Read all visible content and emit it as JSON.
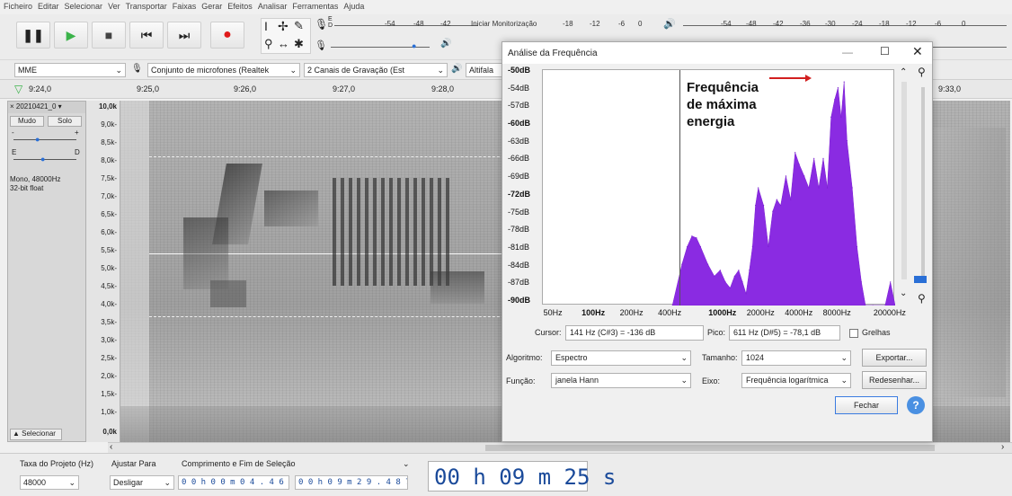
{
  "menu": [
    "Ficheiro",
    "Editar",
    "Selecionar",
    "Ver",
    "Transportar",
    "Faixas",
    "Gerar",
    "Efeitos",
    "Analisar",
    "Ferramentas",
    "Ajuda"
  ],
  "toolbar": {
    "meter_left_ticks": [
      "-54",
      "-48",
      "-42"
    ],
    "monitor_label": "Iniciar Monitorização",
    "meter_mid_ticks": [
      "-18",
      "-12",
      "-6",
      "0"
    ],
    "meter_right_ticks": [
      "-54",
      "-48",
      "-42",
      "-36",
      "-30",
      "-24",
      "-18",
      "-12",
      "-6",
      "0"
    ],
    "lr_top": "E",
    "lr_bottom": "D"
  },
  "devices": {
    "host": "MME",
    "mic": "Conjunto de microfones (Realtek",
    "channels": "2 Canais de Gravação (Est",
    "output": "Altifala"
  },
  "timeline": {
    "start": "9:24,0",
    "ticks": [
      "9:25,0",
      "9:26,0",
      "9:27,0",
      "9:28,0"
    ],
    "right_tick": "9:33,0"
  },
  "track": {
    "name": "20210421_0",
    "mute": "Mudo",
    "solo": "Solo",
    "gain_min": "-",
    "gain_max": "+",
    "pan_left": "E",
    "pan_right": "D",
    "info1": "Mono, 48000Hz",
    "info2": "32-bit float",
    "select": "Selecionar"
  },
  "scale": [
    "10,0k",
    "9,0k-",
    "8,5k-",
    "8,0k-",
    "7,5k-",
    "7,0k-",
    "6,5k-",
    "6,0k-",
    "5,5k-",
    "5,0k-",
    "4,5k-",
    "4,0k-",
    "3,5k-",
    "3,0k-",
    "2,5k-",
    "2,0k-",
    "1,5k-",
    "1,0k-",
    "0,0k"
  ],
  "dialog": {
    "title": "Análise da Frequência",
    "annotation": [
      "Frequência",
      "de máxima",
      "energia"
    ],
    "cursor_label": "Cursor:",
    "cursor_value": "141 Hz (C#3) = -136 dB",
    "peak_label": "Pico:",
    "peak_value": "611 Hz (D#5) = -78,1 dB",
    "grid_label": "Grelhas",
    "algorithm_label": "Algoritmo:",
    "algorithm_value": "Espectro",
    "size_label": "Tamanho:",
    "size_value": "1024",
    "export_button": "Exportar...",
    "function_label": "Função:",
    "function_value": "janela Hann",
    "axis_label": "Eixo:",
    "axis_value": "Frequência logarítmica",
    "redraw_button": "Redesenhar...",
    "close_button": "Fechar",
    "help_icon": "?"
  },
  "selection": {
    "rate_label": "Taxa do Projeto (Hz)",
    "snap_label": "Ajustar Para",
    "range_label": "Comprimento e Fim de Seleção",
    "rate_value": "48000",
    "snap_value": "Desligar",
    "length_value": "0 0 h 0 0 m 0 4 . 4 6 6 s",
    "end_value": "0 0 h 0 9 m 2 9 . 4 8 7 s",
    "position": "00 h 09 m 25 s"
  },
  "chart_data": {
    "type": "area",
    "y_tick_labels": [
      "-50dB",
      "-54dB",
      "-57dB",
      "-60dB",
      "-63dB",
      "-66dB",
      "-69dB",
      "-72dB",
      "-75dB",
      "-78dB",
      "-81dB",
      "-84dB",
      "-87dB",
      "-90dB"
    ],
    "x_tick_labels": [
      "50Hz",
      "100Hz",
      "200Hz",
      "400Hz",
      "1000Hz",
      "2000Hz",
      "4000Hz",
      "8000Hz",
      "20000Hz"
    ],
    "ylim": [
      -90,
      -50
    ],
    "xscale": "log",
    "x": [
      420,
      500,
      550,
      600,
      650,
      700,
      800,
      900,
      1000,
      1100,
      1200,
      1300,
      1400,
      1500,
      1600,
      1700,
      1800,
      1900,
      2000,
      2200,
      2400,
      2600,
      2800,
      3000,
      3300,
      3600,
      3900,
      4200,
      4600,
      5000,
      5500,
      6000,
      6500,
      7000,
      7500,
      8000,
      8500,
      9000,
      9500,
      10000,
      11000,
      12000,
      13000,
      14000,
      16000,
      20000,
      22000,
      24000
    ],
    "values": [
      -90,
      -83,
      -80,
      -78.2,
      -78.5,
      -80,
      -83,
      -85,
      -84,
      -86,
      -87,
      -85,
      -84,
      -86,
      -88,
      -84,
      -80,
      -73,
      -70,
      -73,
      -80,
      -74,
      -72,
      -73,
      -68,
      -72,
      -64,
      -66,
      -68,
      -70,
      -65,
      -70,
      -65,
      -70,
      -58,
      -55,
      -53,
      -58,
      -52,
      -62,
      -70,
      -80,
      -86,
      -90,
      -90,
      -90,
      -86,
      -90
    ],
    "legend": "none",
    "grid": false
  }
}
